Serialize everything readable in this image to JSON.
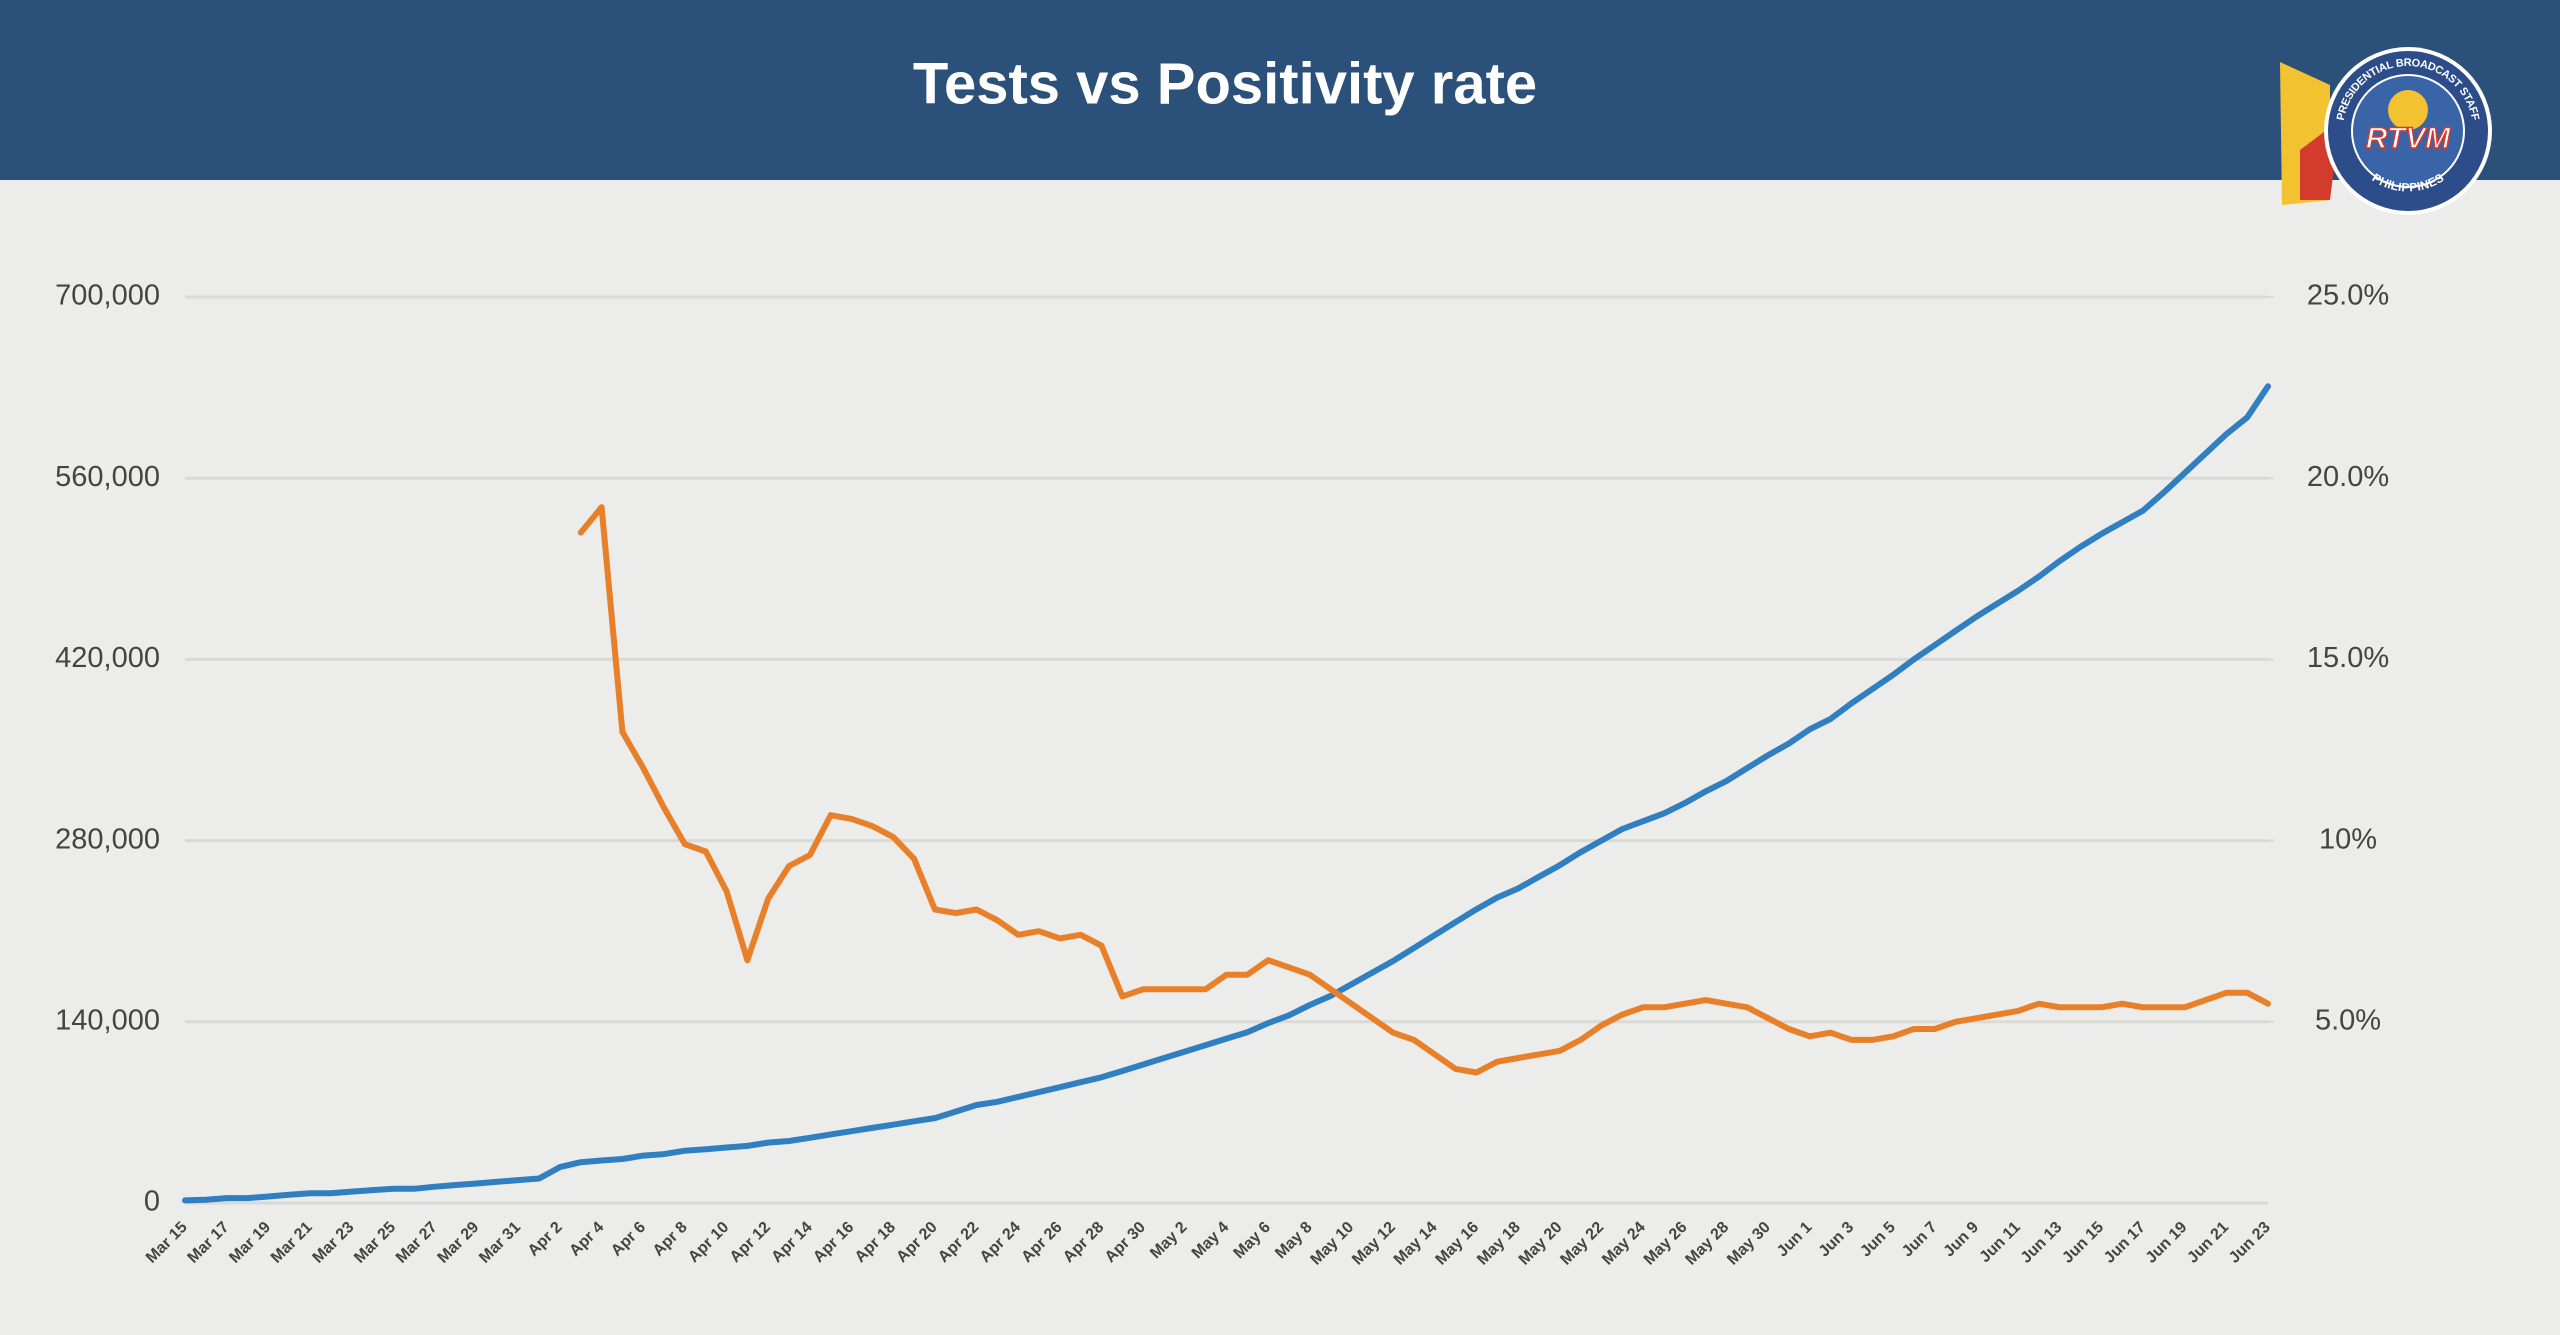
{
  "chart_data": {
    "type": "line",
    "title": "Tests vs Positivity rate",
    "categories": [
      "Mar 15",
      null,
      "Mar 17",
      null,
      "Mar 19",
      null,
      "Mar 21",
      null,
      "Mar 23",
      null,
      "Mar 25",
      null,
      "Mar 27",
      null,
      "Mar 29",
      null,
      "Mar 31",
      null,
      "Apr 2",
      null,
      "Apr 4",
      null,
      "Apr 6",
      null,
      "Apr 8",
      null,
      "Apr 10",
      null,
      "Apr 12",
      null,
      "Apr 14",
      null,
      "Apr 16",
      null,
      "Apr 18",
      null,
      "Apr 20",
      null,
      "Apr 22",
      null,
      "Apr 24",
      null,
      "Apr 26",
      null,
      "Apr 28",
      null,
      "Apr 30",
      null,
      "May 2",
      null,
      "May 4",
      null,
      "May 6",
      null,
      "May 8",
      null,
      "May 10",
      null,
      "May 12",
      null,
      "May 14",
      null,
      "May 16",
      null,
      "May 18",
      null,
      "May 20",
      null,
      "May 22",
      null,
      "May 24",
      null,
      "May 26",
      null,
      "May 28",
      null,
      "May 30",
      null,
      "Jun 1",
      null,
      "Jun 3",
      null,
      "Jun 5",
      null,
      "Jun 7",
      null,
      "Jun 9",
      null,
      "Jun 11",
      null,
      "Jun 13",
      null,
      "Jun 15",
      null,
      "Jun 17",
      null,
      "Jun 19",
      null,
      "Jun 21",
      null,
      "Jun 23"
    ],
    "series": [
      {
        "color": "#2f7fc1",
        "values": [
          2000,
          2500,
          3800,
          3800,
          5000,
          6300,
          7600,
          7600,
          8800,
          10000,
          11000,
          11000,
          12600,
          13900,
          15100,
          16400,
          17700,
          18900,
          27700,
          31500,
          32800,
          34000,
          36600,
          37800,
          40400,
          41600,
          42900,
          44100,
          46700,
          47900,
          50400,
          53000,
          55500,
          58000,
          60500,
          63100,
          65600,
          70600,
          75700,
          78200,
          82000,
          85700,
          89500,
          93300,
          97100,
          102000,
          107000,
          112000,
          117000,
          122000,
          127000,
          132000,
          139000,
          145000,
          153000,
          160000,
          169000,
          178000,
          187000,
          197000,
          207000,
          217000,
          227000,
          236000,
          243000,
          252000,
          261000,
          271000,
          280000,
          289000,
          295000,
          301000,
          309000,
          318000,
          326000,
          336000,
          346000,
          355000,
          366000,
          374000,
          386000,
          397000,
          408000,
          420000,
          431000,
          442000,
          453000,
          463000,
          473000,
          484000,
          496000,
          507000,
          517000,
          526000,
          535000,
          549000,
          564000,
          579000,
          594000,
          607000,
          631000
        ]
      },
      {
        "color": "#e8802a",
        "axis": "y2",
        "values": [
          null,
          null,
          null,
          null,
          null,
          null,
          null,
          null,
          null,
          null,
          null,
          null,
          null,
          null,
          null,
          null,
          null,
          null,
          null,
          18.5,
          19.2,
          13.0,
          12.0,
          10.9,
          9.9,
          9.7,
          8.6,
          6.7,
          8.4,
          9.3,
          9.6,
          10.7,
          10.6,
          10.4,
          10.1,
          9.5,
          8.1,
          8.0,
          8.1,
          7.8,
          7.4,
          7.5,
          7.3,
          7.4,
          7.1,
          5.7,
          5.9,
          5.9,
          5.9,
          5.9,
          6.3,
          6.3,
          6.7,
          6.5,
          6.3,
          5.9,
          5.5,
          5.1,
          4.7,
          4.5,
          4.1,
          3.7,
          3.6,
          3.9,
          4.0,
          4.1,
          4.2,
          4.5,
          4.9,
          5.2,
          5.4,
          5.4,
          5.5,
          5.6,
          5.5,
          5.4,
          5.1,
          4.8,
          4.6,
          4.7,
          4.5,
          4.5,
          4.6,
          4.8,
          4.8,
          5.0,
          5.1,
          5.2,
          5.3,
          5.5,
          5.4,
          5.4,
          5.4,
          5.5,
          5.4,
          5.4,
          5.4,
          5.6,
          5.8,
          5.8,
          5.5
        ]
      }
    ],
    "ylim": [
      0,
      700000
    ],
    "yticks": [
      0,
      {
        "value": 140000,
        "label": "140,000"
      },
      {
        "value": 280000,
        "label": "280,000"
      },
      {
        "value": 420000,
        "label": "420,000"
      },
      {
        "value": 560000,
        "label": "560,000"
      },
      {
        "value": 700000,
        "label": "700,000"
      }
    ],
    "y2lim": [
      0,
      25
    ],
    "y2ticks": [
      {
        "value": 5,
        "label": "5.0%"
      },
      {
        "value": 10,
        "label": "10%"
      },
      {
        "value": 15,
        "label": "15.0%"
      },
      {
        "value": 20,
        "label": "20.0%"
      },
      {
        "value": 25,
        "label": "25.0%"
      }
    ],
    "grid": true
  },
  "logo": {
    "name": "RTVM",
    "ring_top": "PRESIDENTIAL BROADCAST STAFF",
    "ring_bottom": "PHILIPPINES"
  }
}
